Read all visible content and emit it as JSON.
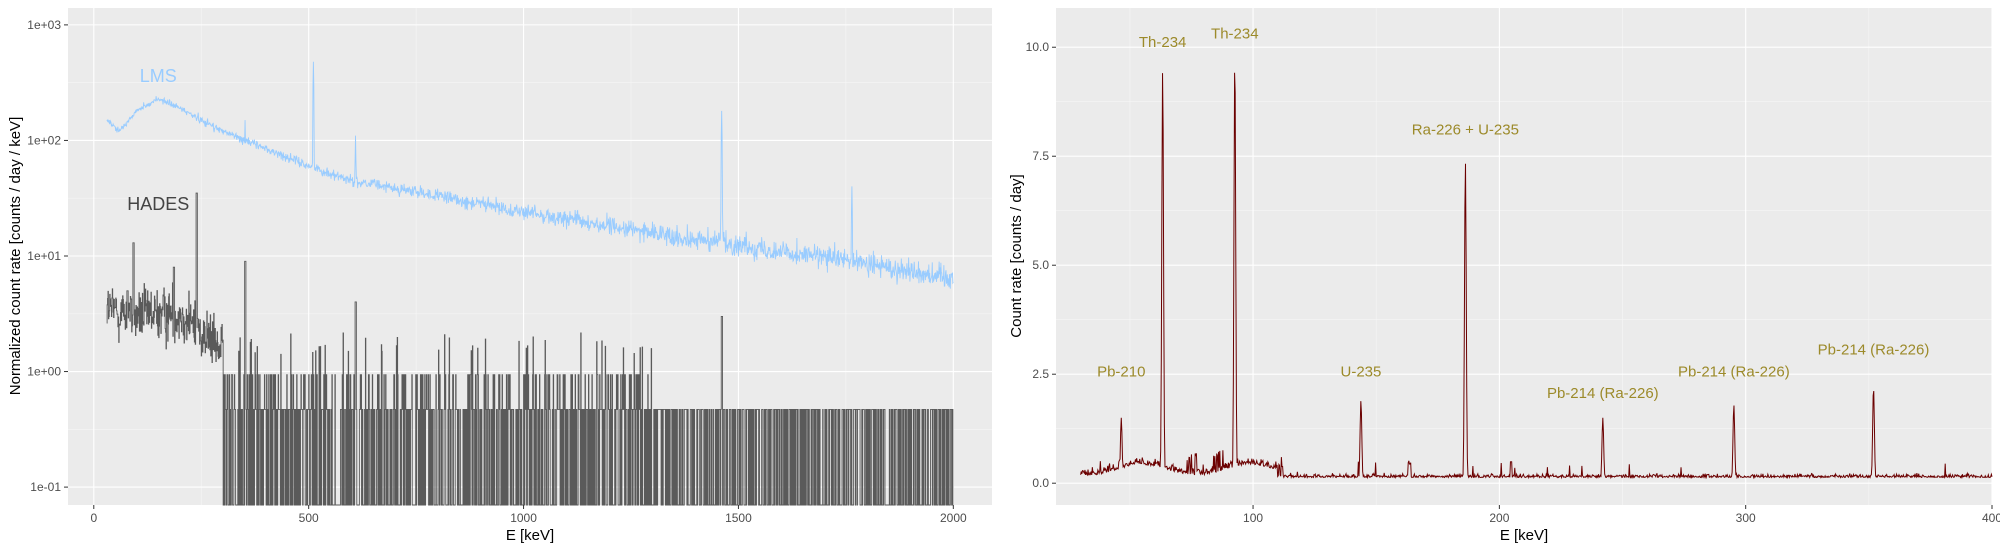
{
  "chart_data": [
    {
      "type": "line",
      "xlabel": "E [keV]",
      "ylabel": "Normalized count rate [counts / day / keV]",
      "xlim": [
        -60,
        2090
      ],
      "ylim": [
        0.07,
        1400
      ],
      "yscale": "log",
      "x_ticks": [
        0,
        500,
        1000,
        1500,
        2000
      ],
      "x_tick_labels": [
        "0",
        "500",
        "1000",
        "1500",
        "2000"
      ],
      "y_ticks": [
        0.1,
        1,
        10,
        100,
        1000
      ],
      "y_tick_labels": [
        "1e-01",
        "1e+00",
        "1e+01",
        "1e+02",
        "1e+03"
      ],
      "grid": true,
      "series": [
        {
          "name": "LMS",
          "color": "#99ccff",
          "continuum": [
            [
              30,
              150
            ],
            [
              60,
              120
            ],
            [
              100,
              180
            ],
            [
              150,
              230
            ],
            [
              200,
              190
            ],
            [
              300,
              120
            ],
            [
              400,
              85
            ],
            [
              500,
              60
            ],
            [
              600,
              45
            ],
            [
              800,
              33
            ],
            [
              1000,
              24
            ],
            [
              1200,
              18
            ],
            [
              1400,
              14
            ],
            [
              1600,
              11
            ],
            [
              1800,
              8.5
            ],
            [
              2000,
              6.5
            ]
          ],
          "peaks": [
            [
              239,
              40
            ],
            [
              352,
              150
            ],
            [
              511,
              480
            ],
            [
              609,
              110
            ],
            [
              911,
              30
            ],
            [
              1120,
              25
            ],
            [
              1461,
              180
            ],
            [
              1764,
              40
            ]
          ]
        },
        {
          "name": "HADES",
          "color": "#5a5a5a",
          "continuum": [
            [
              30,
              3.5
            ],
            [
              100,
              3
            ],
            [
              200,
              3.2
            ],
            [
              300,
              1.5
            ],
            [
              400,
              1
            ],
            [
              600,
              0.6
            ],
            [
              1000,
              0.4
            ],
            [
              1500,
              0.3
            ],
            [
              2000,
              0.25
            ]
          ],
          "peaks": [
            [
              78,
              5
            ],
            [
              92,
              13
            ],
            [
              186,
              8
            ],
            [
              239,
              35
            ],
            [
              352,
              9
            ],
            [
              609,
              4
            ],
            [
              1461,
              3
            ]
          ]
        }
      ]
    },
    {
      "type": "line",
      "xlabel": "E [keV]",
      "ylabel": "Count rate [counts / day]",
      "xlim": [
        20,
        400
      ],
      "ylim": [
        -0.5,
        10.9
      ],
      "x_ticks": [
        100,
        200,
        300,
        400
      ],
      "x_tick_labels": [
        "100",
        "200",
        "300",
        "400"
      ],
      "y_ticks": [
        0,
        2.5,
        5,
        7.5,
        10
      ],
      "y_tick_labels": [
        "0.0",
        "2.5",
        "5.0",
        "7.5",
        "10.0"
      ],
      "grid": true,
      "series": [
        {
          "color": "#6b0000",
          "peaks": [
            [
              46.5,
              1.5
            ],
            [
              63.3,
              9.5
            ],
            [
              92.6,
              9.8
            ],
            [
              143.8,
              1.9
            ],
            [
              186.2,
              7.4
            ],
            [
              242,
              1.5
            ],
            [
              295.2,
              1.8
            ],
            [
              351.9,
              2.2
            ]
          ]
        }
      ],
      "annotations": [
        {
          "text": "Pb-210",
          "x": 46.5,
          "y": 2.45
        },
        {
          "text": "Th-234",
          "x": 63.3,
          "y": 10.0
        },
        {
          "text": "Th-234",
          "x": 92.6,
          "y": 10.2
        },
        {
          "text": "U-235",
          "x": 143.8,
          "y": 2.45
        },
        {
          "text": "Ra-226 + U-235",
          "x": 186.2,
          "y": 8.0
        },
        {
          "text": "Pb-214 (Ra-226)",
          "x": 242,
          "y": 1.95
        },
        {
          "text": "Pb-214 (Ra-226)",
          "x": 295.2,
          "y": 2.45
        },
        {
          "text": "Pb-214 (Ra-226)",
          "x": 351.9,
          "y": 2.95
        }
      ],
      "annotation_color": "#9c8a2a"
    }
  ]
}
